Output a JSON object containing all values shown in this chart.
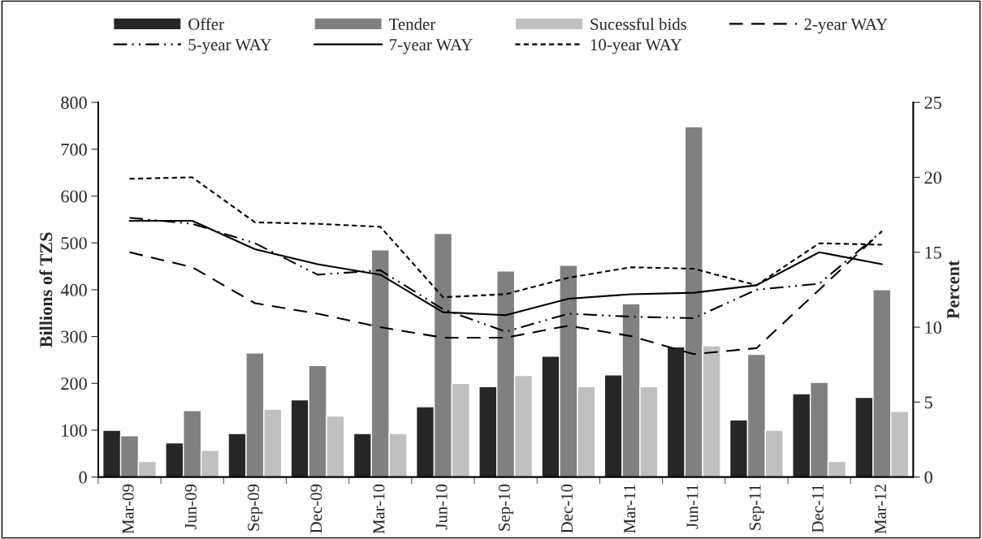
{
  "chart_data": {
    "type": "bar",
    "ylabel": "Billions of TZS",
    "y2label": "Percent",
    "categories": [
      "Mar-09",
      "Jun-09",
      "Sep-09",
      "Dec-09",
      "Mar-10",
      "Jun-10",
      "Sep-10",
      "Dec-10",
      "Mar-11",
      "Jun-11",
      "Sep-11",
      "Dec-11",
      "Mar-12"
    ],
    "series": [
      {
        "name": "Offer",
        "color": "#262626",
        "values": [
          100,
          73,
          93,
          165,
          93,
          150,
          193,
          258,
          218,
          278,
          122,
          178,
          170
        ]
      },
      {
        "name": "Tender",
        "color": "#808080",
        "values": [
          88,
          142,
          265,
          238,
          485,
          520,
          440,
          452,
          370,
          748,
          262,
          202,
          400
        ]
      },
      {
        "name": "Sucessful bids",
        "color": "#c0c0c0",
        "values": [
          33,
          57,
          145,
          130,
          93,
          200,
          217,
          193,
          193,
          280,
          100,
          33,
          140
        ]
      },
      {
        "name": "2-year WAY",
        "type": "line",
        "axis": "y2",
        "color": "#000000",
        "line_style": "dashed",
        "values": [
          15.0,
          14.0,
          11.6,
          10.9,
          10.0,
          9.3,
          9.3,
          10.1,
          9.4,
          8.2,
          8.6,
          12.5,
          16.4
        ]
      },
      {
        "name": "5-year WAY",
        "type": "line",
        "axis": "y2",
        "color": "#000000",
        "line_style": "dashdotdot",
        "values": [
          17.3,
          16.9,
          15.6,
          13.5,
          13.8,
          11.2,
          9.7,
          10.9,
          10.7,
          10.6,
          12.5,
          12.9,
          16.4
        ]
      },
      {
        "name": "7-year WAY",
        "type": "line",
        "axis": "y2",
        "color": "#000000",
        "line_style": "solid",
        "values": [
          17.1,
          17.1,
          15.2,
          14.2,
          13.5,
          11.0,
          10.8,
          11.9,
          12.2,
          12.3,
          12.8,
          15.0,
          14.2
        ]
      },
      {
        "name": "10-year WAY",
        "type": "line",
        "axis": "y2",
        "color": "#000000",
        "line_style": "dotted",
        "values": [
          19.9,
          20.0,
          17.0,
          16.9,
          16.7,
          12.0,
          12.2,
          13.3,
          14.0,
          13.9,
          12.8,
          15.6,
          15.5
        ]
      }
    ],
    "ylim": [
      0,
      800
    ],
    "yticks": [
      0,
      100,
      200,
      300,
      400,
      500,
      600,
      700,
      800
    ],
    "y2lim": [
      0,
      25
    ],
    "y2ticks": [
      0,
      5,
      10,
      15,
      20,
      25
    ],
    "grid": false,
    "legend": "top"
  }
}
